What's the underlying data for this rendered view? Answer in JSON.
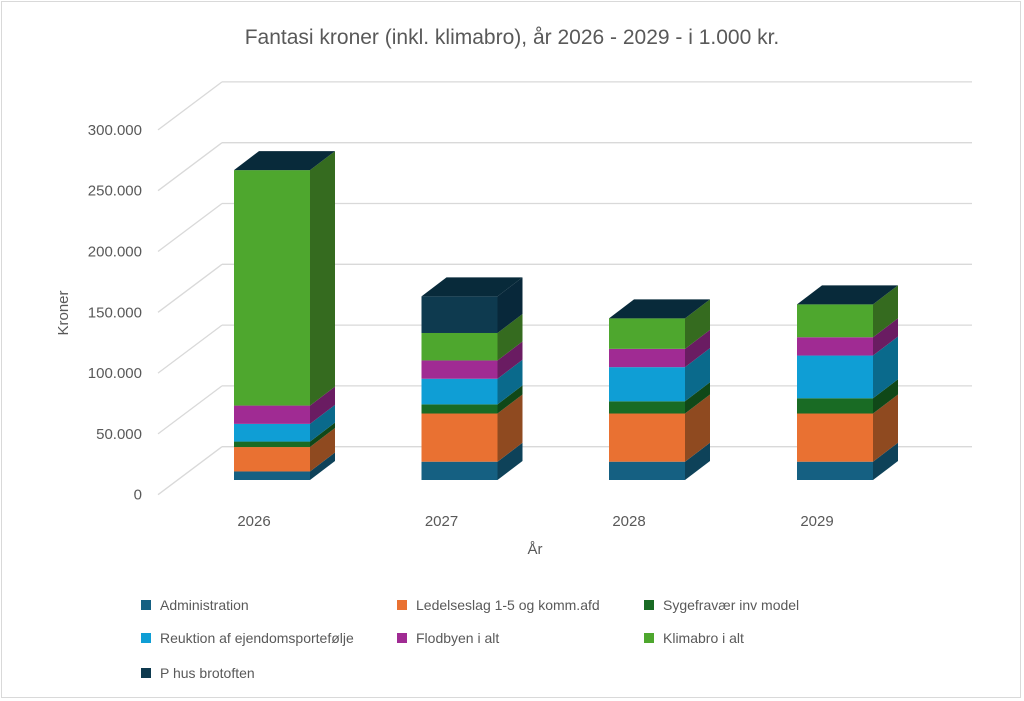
{
  "chart_data": {
    "type": "bar",
    "subtype": "3d-stacked-column",
    "title": "Fantasi  kroner (inkl. klimabro), år  2026 - 2029 - i 1.000 kr.",
    "xlabel": "År",
    "ylabel": "Kroner",
    "ylim": [
      0,
      300000
    ],
    "yticks": [
      "0",
      "50.000",
      "100.000",
      "150.000",
      "200.000",
      "250.000",
      "300.000"
    ],
    "ytick_values": [
      0,
      50000,
      100000,
      150000,
      200000,
      250000,
      300000
    ],
    "grid": true,
    "legend_position": "bottom",
    "categories": [
      "2026",
      "2027",
      "2028",
      "2029"
    ],
    "series": [
      {
        "name": "Administration",
        "color": "#156082",
        "side": "#0e4259",
        "values": [
          7000,
          15000,
          15000,
          15000
        ]
      },
      {
        "name": "Ledelseslag 1-5 og komm.afd",
        "color": "#e97132",
        "side": "#8f4a20",
        "values": [
          20000,
          39500,
          39500,
          39500
        ]
      },
      {
        "name": "Sygefravær inv model",
        "color": "#196b24",
        "side": "#104818",
        "values": [
          4500,
          7500,
          10000,
          12500
        ]
      },
      {
        "name": "Reuktion af ejendomsportefølje",
        "color": "#0f9ed5",
        "side": "#0a6a8c",
        "values": [
          14500,
          21000,
          28000,
          35000
        ]
      },
      {
        "name": "Flodbyen i alt",
        "color": "#a02b93",
        "side": "#6a1c62",
        "values": [
          15000,
          15000,
          15000,
          15000
        ]
      },
      {
        "name": "Klimabro i alt",
        "color": "#4ea72e",
        "side": "#356b1f",
        "values": [
          193000,
          22500,
          25000,
          27000
        ]
      },
      {
        "name": "P hus brotoften",
        "color": "#0e3a4f",
        "side": "#08283a",
        "values": [
          0,
          30000,
          0,
          0
        ]
      }
    ],
    "top_color": "#082a3a"
  }
}
